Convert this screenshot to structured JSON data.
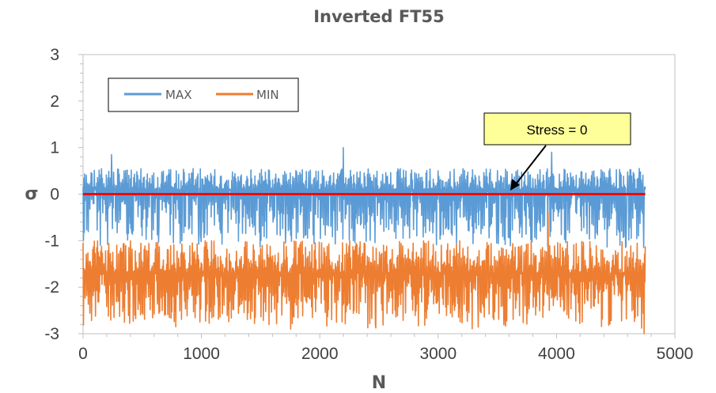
{
  "chart_data": {
    "type": "line",
    "title": "Inverted FT55",
    "xlabel": "N",
    "ylabel": "σ",
    "xlim": [
      0,
      5000
    ],
    "ylim": [
      -3,
      3
    ],
    "x_ticks": [
      "0",
      "1000",
      "2000",
      "3000",
      "4000",
      "5000"
    ],
    "y_ticks": [
      "3",
      "2",
      "1",
      "0",
      "-1",
      "-2",
      "-3"
    ],
    "grid": false,
    "legend_position": "top-left",
    "series": [
      {
        "name": "MAX",
        "color": "#5B9BD5",
        "x_range": [
          0,
          4750
        ],
        "baseline": 0.1,
        "typical_range": [
          -1.0,
          0.55
        ],
        "peaks": [
          {
            "x": 240,
            "y": 0.85
          },
          {
            "x": 2200,
            "y": 1.0
          },
          {
            "x": 3960,
            "y": 0.9
          },
          {
            "x": 4700,
            "y": 0.55
          }
        ]
      },
      {
        "name": "MIN",
        "color": "#ED7D31",
        "x_range": [
          0,
          4750
        ],
        "baseline": -1.7,
        "typical_range": [
          -2.75,
          -1.0
        ],
        "peaks": [
          {
            "x": 3930,
            "y": -0.4
          },
          {
            "x": 4740,
            "y": -3.0
          }
        ]
      },
      {
        "name": "Stress = 0",
        "color": "#FF0000",
        "x": [
          0,
          4750
        ],
        "y": [
          0,
          0
        ]
      }
    ],
    "annotations": [
      {
        "text": "Stress = 0",
        "arrow_to": {
          "x": 3620,
          "y": 0.05
        }
      }
    ]
  }
}
